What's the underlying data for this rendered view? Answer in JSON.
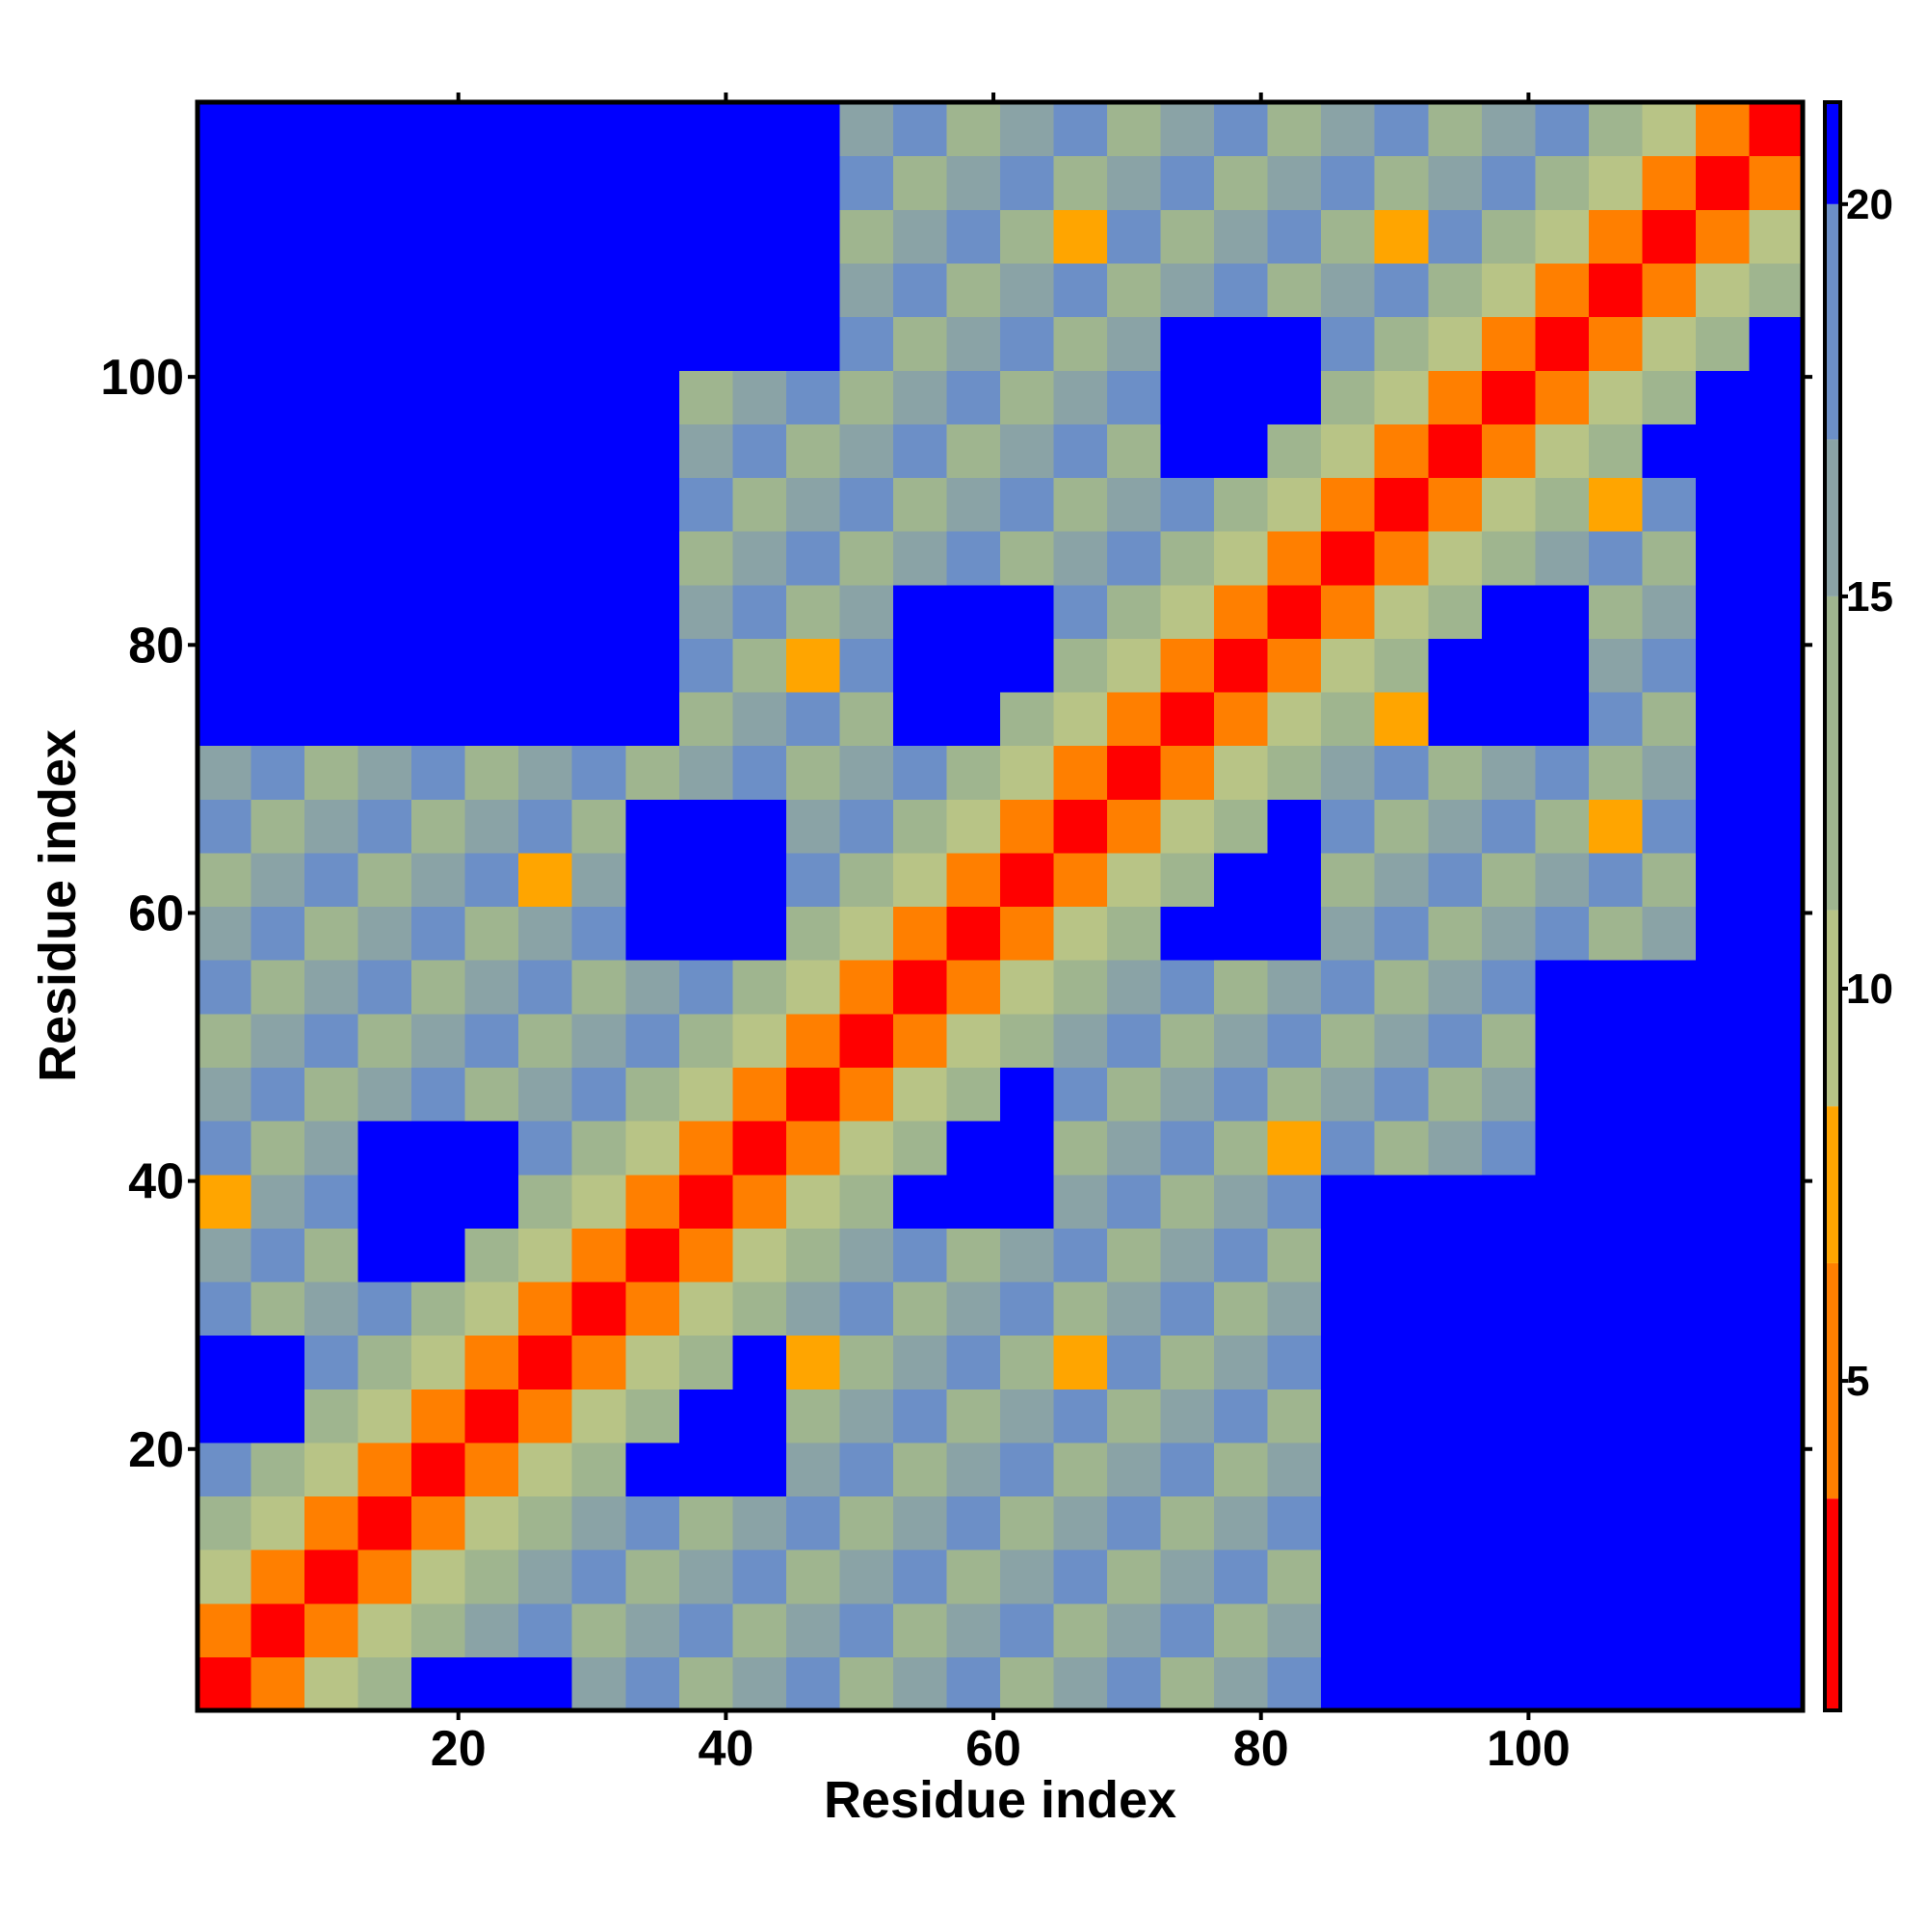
{
  "chart_data": {
    "type": "heatmap",
    "x_label": "Residue index",
    "y_label": "Residue index",
    "x": [
      2.5,
      6.5,
      10.5,
      14.5,
      18.5,
      22.5,
      26.5,
      30.5,
      34.5,
      38.5,
      42.5,
      46.5,
      50.5,
      54.5,
      58.5,
      62.5,
      66.5,
      70.5,
      74.5,
      78.5,
      82.5,
      86.5,
      90.5,
      94.5,
      98.5,
      102.5,
      106.5,
      110.5,
      114.5,
      118.5
    ],
    "y": [
      2.5,
      6.5,
      10.5,
      14.5,
      18.5,
      22.5,
      26.5,
      30.5,
      34.5,
      38.5,
      42.5,
      46.5,
      50.5,
      54.5,
      58.5,
      62.5,
      66.5,
      70.5,
      74.5,
      78.5,
      82.5,
      86.5,
      90.5,
      94.5,
      98.5,
      102.5,
      106.5,
      110.5,
      114.5,
      118.5
    ],
    "values": [
      [
        2,
        6,
        10,
        13,
        21,
        21,
        21,
        16,
        18,
        14,
        16,
        18,
        14,
        16,
        18,
        14,
        16,
        18,
        14,
        16,
        18,
        21,
        21,
        21,
        21,
        21,
        21,
        21,
        21,
        21
      ],
      [
        6,
        2,
        6,
        10,
        13,
        16,
        18,
        14,
        16,
        18,
        14,
        16,
        18,
        14,
        16,
        18,
        14,
        16,
        18,
        14,
        16,
        21,
        21,
        21,
        21,
        21,
        21,
        21,
        21,
        21
      ],
      [
        10,
        6,
        2,
        6,
        10,
        13,
        16,
        18,
        14,
        16,
        18,
        14,
        16,
        18,
        14,
        16,
        18,
        14,
        16,
        18,
        14,
        21,
        21,
        21,
        21,
        21,
        21,
        21,
        21,
        21
      ],
      [
        13,
        10,
        6,
        2,
        6,
        10,
        13,
        16,
        18,
        14,
        16,
        18,
        14,
        16,
        18,
        14,
        16,
        18,
        14,
        16,
        18,
        21,
        21,
        21,
        21,
        21,
        21,
        21,
        21,
        21
      ],
      [
        18,
        13,
        10,
        6,
        2,
        6,
        10,
        13,
        21,
        21,
        21,
        16,
        18,
        14,
        16,
        18,
        14,
        16,
        18,
        14,
        16,
        21,
        21,
        21,
        21,
        21,
        21,
        21,
        21,
        21
      ],
      [
        21,
        21,
        13,
        10,
        6,
        2,
        6,
        10,
        13,
        21,
        21,
        14,
        16,
        18,
        14,
        16,
        18,
        14,
        16,
        18,
        14,
        21,
        21,
        21,
        21,
        21,
        21,
        21,
        21,
        21
      ],
      [
        21,
        21,
        18,
        13,
        10,
        6,
        2,
        6,
        10,
        13,
        21,
        8,
        14,
        16,
        18,
        14,
        8,
        18,
        14,
        16,
        18,
        21,
        21,
        21,
        21,
        21,
        21,
        21,
        21,
        21
      ],
      [
        18,
        14,
        16,
        18,
        13,
        10,
        6,
        2,
        6,
        10,
        13,
        16,
        18,
        14,
        16,
        18,
        14,
        16,
        18,
        14,
        16,
        21,
        21,
        21,
        21,
        21,
        21,
        21,
        21,
        21
      ],
      [
        16,
        18,
        14,
        21,
        21,
        13,
        10,
        6,
        2,
        6,
        10,
        13,
        16,
        18,
        14,
        16,
        18,
        14,
        16,
        18,
        14,
        21,
        21,
        21,
        21,
        21,
        21,
        21,
        21,
        21
      ],
      [
        8,
        16,
        18,
        21,
        21,
        21,
        13,
        10,
        6,
        2,
        6,
        10,
        13,
        21,
        21,
        21,
        16,
        18,
        14,
        16,
        18,
        21,
        21,
        21,
        21,
        21,
        21,
        21,
        21,
        21
      ],
      [
        18,
        14,
        16,
        21,
        21,
        21,
        18,
        13,
        10,
        6,
        2,
        6,
        10,
        13,
        21,
        21,
        14,
        16,
        18,
        14,
        8,
        18,
        14,
        16,
        18,
        21,
        21,
        21,
        21,
        21
      ],
      [
        16,
        18,
        14,
        16,
        18,
        14,
        16,
        18,
        13,
        10,
        6,
        2,
        6,
        10,
        13,
        21,
        18,
        14,
        16,
        18,
        14,
        16,
        18,
        14,
        16,
        21,
        21,
        21,
        21,
        21
      ],
      [
        14,
        16,
        18,
        14,
        16,
        18,
        14,
        16,
        18,
        13,
        10,
        6,
        2,
        6,
        10,
        13,
        16,
        18,
        14,
        16,
        18,
        14,
        16,
        18,
        14,
        21,
        21,
        21,
        21,
        21
      ],
      [
        18,
        14,
        16,
        18,
        14,
        16,
        18,
        14,
        16,
        18,
        13,
        10,
        6,
        2,
        6,
        10,
        13,
        16,
        18,
        14,
        16,
        18,
        14,
        16,
        18,
        21,
        21,
        21,
        21,
        21
      ],
      [
        16,
        18,
        14,
        16,
        18,
        14,
        16,
        18,
        21,
        21,
        21,
        13,
        10,
        6,
        2,
        6,
        10,
        13,
        21,
        21,
        21,
        16,
        18,
        14,
        16,
        18,
        14,
        16,
        21,
        21
      ],
      [
        14,
        16,
        18,
        14,
        16,
        18,
        8,
        16,
        21,
        21,
        21,
        18,
        13,
        10,
        6,
        2,
        6,
        10,
        13,
        21,
        21,
        14,
        16,
        18,
        14,
        16,
        18,
        14,
        21,
        21
      ],
      [
        18,
        14,
        16,
        18,
        14,
        16,
        18,
        14,
        21,
        21,
        21,
        16,
        18,
        13,
        10,
        6,
        2,
        6,
        10,
        13,
        21,
        18,
        14,
        16,
        18,
        14,
        8,
        18,
        21,
        21
      ],
      [
        16,
        18,
        14,
        16,
        18,
        14,
        16,
        18,
        14,
        16,
        18,
        14,
        16,
        18,
        13,
        10,
        6,
        2,
        6,
        10,
        13,
        16,
        18,
        14,
        16,
        18,
        14,
        16,
        21,
        21
      ],
      [
        21,
        21,
        21,
        21,
        21,
        21,
        21,
        21,
        21,
        14,
        16,
        18,
        14,
        21,
        21,
        13,
        10,
        6,
        2,
        6,
        10,
        13,
        8,
        21,
        21,
        21,
        18,
        14,
        21,
        21
      ],
      [
        21,
        21,
        21,
        21,
        21,
        21,
        21,
        21,
        21,
        18,
        14,
        8,
        18,
        21,
        21,
        21,
        13,
        10,
        6,
        2,
        6,
        10,
        13,
        21,
        21,
        21,
        16,
        18,
        21,
        21
      ],
      [
        21,
        21,
        21,
        21,
        21,
        21,
        21,
        21,
        21,
        16,
        18,
        14,
        16,
        21,
        21,
        21,
        18,
        13,
        10,
        6,
        2,
        6,
        10,
        13,
        21,
        21,
        14,
        16,
        21,
        21
      ],
      [
        21,
        21,
        21,
        21,
        21,
        21,
        21,
        21,
        21,
        14,
        16,
        18,
        14,
        16,
        18,
        14,
        16,
        18,
        13,
        10,
        6,
        2,
        6,
        10,
        13,
        16,
        18,
        14,
        21,
        21
      ],
      [
        21,
        21,
        21,
        21,
        21,
        21,
        21,
        21,
        21,
        18,
        14,
        16,
        18,
        14,
        16,
        18,
        14,
        16,
        18,
        13,
        10,
        6,
        2,
        6,
        10,
        13,
        8,
        18,
        21,
        21
      ],
      [
        21,
        21,
        21,
        21,
        21,
        21,
        21,
        21,
        21,
        16,
        18,
        14,
        16,
        18,
        14,
        16,
        18,
        14,
        21,
        21,
        13,
        10,
        6,
        2,
        6,
        10,
        13,
        21,
        21,
        21
      ],
      [
        21,
        21,
        21,
        21,
        21,
        21,
        21,
        21,
        21,
        14,
        16,
        18,
        14,
        16,
        18,
        14,
        16,
        18,
        21,
        21,
        21,
        13,
        10,
        6,
        2,
        6,
        10,
        13,
        21,
        21
      ],
      [
        21,
        21,
        21,
        21,
        21,
        21,
        21,
        21,
        21,
        21,
        21,
        21,
        18,
        14,
        16,
        18,
        14,
        16,
        21,
        21,
        21,
        18,
        13,
        10,
        6,
        2,
        6,
        10,
        13,
        21
      ],
      [
        21,
        21,
        21,
        21,
        21,
        21,
        21,
        21,
        21,
        21,
        21,
        21,
        16,
        18,
        14,
        16,
        18,
        14,
        16,
        18,
        14,
        16,
        18,
        13,
        10,
        6,
        2,
        6,
        10,
        13
      ],
      [
        21,
        21,
        21,
        21,
        21,
        21,
        21,
        21,
        21,
        21,
        21,
        21,
        14,
        16,
        18,
        14,
        8,
        18,
        14,
        16,
        18,
        14,
        8,
        18,
        13,
        10,
        6,
        2,
        6,
        10
      ],
      [
        21,
        21,
        21,
        21,
        21,
        21,
        21,
        21,
        21,
        21,
        21,
        21,
        18,
        14,
        16,
        18,
        14,
        16,
        18,
        14,
        16,
        18,
        14,
        16,
        18,
        13,
        10,
        6,
        2,
        6
      ],
      [
        21,
        21,
        21,
        21,
        21,
        21,
        21,
        21,
        21,
        21,
        21,
        21,
        16,
        18,
        14,
        16,
        18,
        14,
        16,
        18,
        14,
        16,
        18,
        14,
        16,
        18,
        13,
        10,
        6,
        2
      ]
    ],
    "xlim": [
      0.5,
      120.5
    ],
    "ylim": [
      0.5,
      120.5
    ],
    "xticks": [
      20,
      40,
      60,
      80,
      100
    ],
    "yticks": [
      20,
      40,
      60,
      80,
      100
    ],
    "zlim": [
      0.8,
      21.3
    ],
    "zticks": [
      5,
      10,
      15,
      20
    ],
    "color_levels": [
      {
        "max": 3.5,
        "color": "#ff0000"
      },
      {
        "max": 6.5,
        "color": "#ff7f00"
      },
      {
        "max": 8.5,
        "color": "#ffa500"
      },
      {
        "max": 11,
        "color": "#b8c486"
      },
      {
        "max": 15,
        "color": "#9fb58f"
      },
      {
        "max": 17,
        "color": "#8aa3a6"
      },
      {
        "max": 20,
        "color": "#6c8fc7"
      },
      {
        "max": 21.3,
        "color": "#0000ff"
      }
    ]
  }
}
